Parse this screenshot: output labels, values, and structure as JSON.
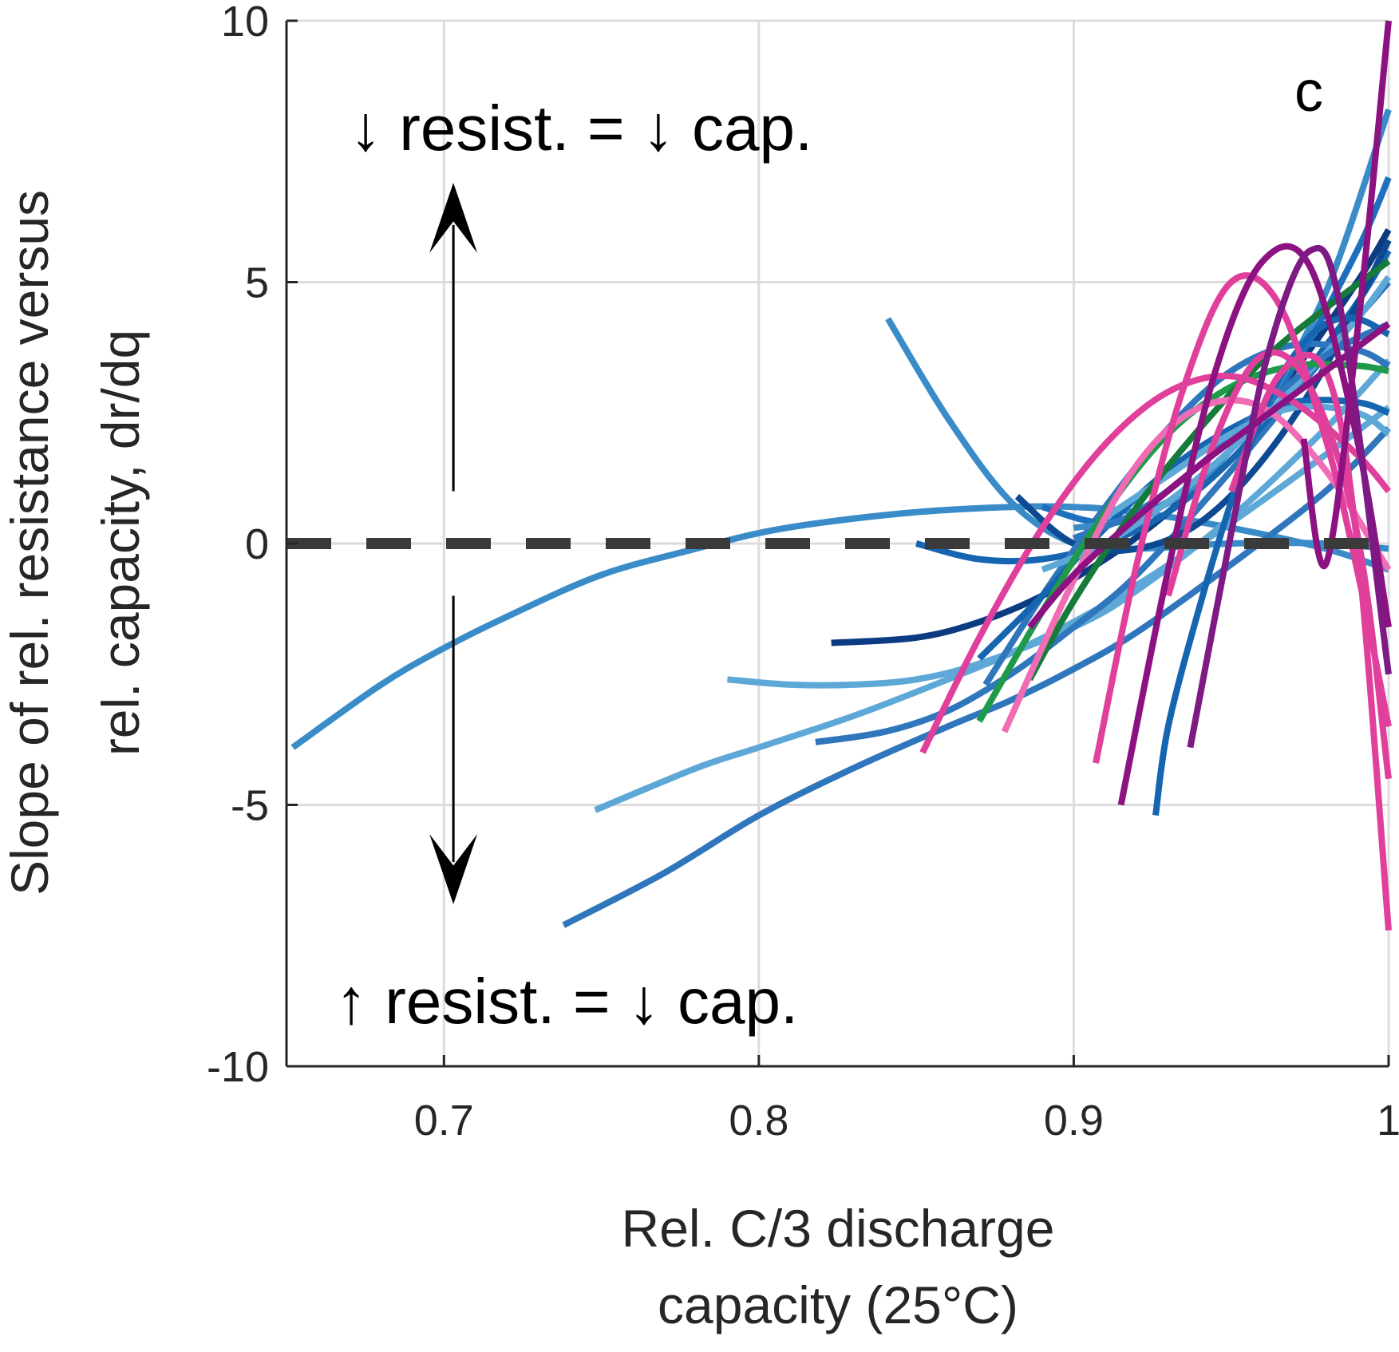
{
  "chart_data": {
    "type": "line",
    "panel_label": "c",
    "xlabel": [
      "Rel. C/3 discharge",
      "capacity (25°C)"
    ],
    "ylabel": [
      "Slope of rel. resistance versus",
      "rel. capacity, dr/dq"
    ],
    "xlim": [
      0.65,
      1.0
    ],
    "ylim": [
      -10,
      10
    ],
    "xticks": [
      0.7,
      0.8,
      0.9,
      1.0
    ],
    "xtick_labels": [
      "0.7",
      "0.8",
      "0.9",
      "1"
    ],
    "yticks": [
      -10,
      -5,
      0,
      5,
      10
    ],
    "ytick_labels": [
      "-10",
      "-5",
      "0",
      "5",
      "10"
    ],
    "grid": true,
    "annotations": {
      "upper": "↓ resist. = ↓ cap.",
      "lower": "↑ resist. = ↓ cap."
    },
    "zero_line": {
      "y": 0,
      "style": "dashed",
      "color": "#3a3a3a"
    },
    "arrows": [
      {
        "x": 0.703,
        "from": 1.0,
        "to": 6.9,
        "direction": "up"
      },
      {
        "x": 0.703,
        "from": -1.0,
        "to": -6.9,
        "direction": "down"
      }
    ],
    "series": [
      {
        "color": "#3a8cc9",
        "x": [
          0.652,
          0.68,
          0.7,
          0.72,
          0.75,
          0.78,
          0.8,
          0.82,
          0.85,
          0.88,
          0.9,
          0.92,
          0.95,
          0.98,
          1.0
        ],
        "y": [
          -3.9,
          -2.7,
          -2.0,
          -1.4,
          -0.6,
          -0.1,
          0.2,
          0.4,
          0.6,
          0.7,
          0.7,
          0.6,
          0.3,
          -0.1,
          -0.5
        ]
      },
      {
        "color": "#3a8cc9",
        "x": [
          0.841,
          0.86,
          0.88,
          0.9,
          0.92,
          0.95,
          0.98,
          1.0
        ],
        "y": [
          4.3,
          2.4,
          0.8,
          0.0,
          -0.1,
          0.0,
          0.0,
          -0.1
        ]
      },
      {
        "color": "#2f76bd",
        "x": [
          0.738,
          0.77,
          0.8,
          0.83,
          0.86,
          0.88,
          0.9,
          0.92,
          0.95,
          0.98,
          1.0
        ],
        "y": [
          -7.3,
          -6.3,
          -5.2,
          -4.3,
          -3.5,
          -3.0,
          -2.4,
          -1.7,
          -0.4,
          1.0,
          2.2
        ]
      },
      {
        "color": "#5ea8d8",
        "x": [
          0.748,
          0.78,
          0.8,
          0.83,
          0.86,
          0.88,
          0.9,
          0.92,
          0.95,
          0.98,
          1.0
        ],
        "y": [
          -5.1,
          -4.3,
          -3.9,
          -3.3,
          -2.6,
          -2.1,
          -1.5,
          -0.8,
          0.4,
          1.7,
          2.6
        ]
      },
      {
        "color": "#5ea8d8",
        "x": [
          0.79,
          0.81,
          0.83,
          0.85,
          0.87,
          0.9,
          0.92,
          0.95,
          0.98,
          1.0
        ],
        "y": [
          -2.6,
          -2.7,
          -2.7,
          -2.6,
          -2.3,
          -1.6,
          -0.9,
          0.5,
          2.2,
          3.5
        ]
      },
      {
        "color": "#2f76bd",
        "x": [
          0.818,
          0.84,
          0.86,
          0.88,
          0.9,
          0.92,
          0.95,
          0.98,
          1.0
        ],
        "y": [
          -3.8,
          -3.6,
          -3.2,
          -2.5,
          -1.6,
          -0.6,
          1.4,
          3.6,
          5.0
        ]
      },
      {
        "color": "#0d3b82",
        "x": [
          0.823,
          0.85,
          0.87,
          0.89,
          0.91,
          0.93,
          0.95,
          0.97,
          0.99,
          1.0
        ],
        "y": [
          -1.9,
          -1.8,
          -1.5,
          -1.0,
          -0.3,
          0.6,
          1.8,
          3.3,
          5.0,
          6.0
        ]
      },
      {
        "color": "#1565b0",
        "x": [
          0.85,
          0.87,
          0.89,
          0.91,
          0.93,
          0.95,
          0.97,
          0.99,
          1.0
        ],
        "y": [
          0.0,
          -0.3,
          -0.3,
          0.0,
          0.6,
          1.6,
          3.0,
          4.6,
          5.6
        ]
      },
      {
        "color": "#0d4a92",
        "x": [
          0.882,
          0.9,
          0.92,
          0.94,
          0.96,
          0.98,
          1.0
        ],
        "y": [
          0.9,
          0.0,
          -0.1,
          0.4,
          1.6,
          3.4,
          5.8
        ]
      },
      {
        "color": "#2f76bd",
        "x": [
          0.872,
          0.89,
          0.91,
          0.93,
          0.95,
          0.97,
          0.99,
          1.0
        ],
        "y": [
          -2.7,
          -1.0,
          0.7,
          2.2,
          3.3,
          3.8,
          3.7,
          3.4
        ]
      },
      {
        "color": "#1565b0",
        "x": [
          0.87,
          0.89,
          0.91,
          0.93,
          0.95,
          0.97,
          0.99,
          1.0
        ],
        "y": [
          -2.2,
          -1.0,
          0.3,
          1.4,
          2.2,
          2.7,
          2.7,
          2.5
        ]
      },
      {
        "color": "#1e6fbe",
        "x": [
          0.89,
          0.91,
          0.93,
          0.95,
          0.97,
          0.99,
          1.0
        ],
        "y": [
          0.7,
          0.4,
          0.8,
          1.8,
          3.4,
          5.6,
          7.0
        ]
      },
      {
        "color": "#3a8cc9",
        "x": [
          0.9,
          0.92,
          0.94,
          0.96,
          0.98,
          1.0
        ],
        "y": [
          0.3,
          0.5,
          1.2,
          2.6,
          4.8,
          8.3
        ]
      },
      {
        "color": "#5ea8d8",
        "x": [
          0.89,
          0.91,
          0.93,
          0.95,
          0.97,
          0.99,
          1.0
        ],
        "y": [
          -0.5,
          0.0,
          0.8,
          1.8,
          3.0,
          4.3,
          5.1
        ]
      },
      {
        "color": "#2f76bd",
        "x": [
          0.9,
          0.92,
          0.94,
          0.96,
          0.98,
          1.0
        ],
        "y": [
          0.1,
          0.6,
          1.5,
          2.6,
          3.6,
          4.2
        ]
      },
      {
        "color": "#1565b0",
        "x": [
          0.926,
          0.93,
          0.94,
          0.95,
          0.96,
          0.97,
          0.98,
          0.99,
          1.0
        ],
        "y": [
          -5.2,
          -3.5,
          -1.2,
          0.8,
          2.5,
          3.6,
          4.2,
          4.3,
          4.0
        ]
      },
      {
        "color": "#5ea8d8",
        "x": [
          0.91,
          0.93,
          0.95,
          0.97,
          0.99,
          1.0
        ],
        "y": [
          0.5,
          1.3,
          2.1,
          2.6,
          2.5,
          2.1
        ]
      },
      {
        "color": "#1e9a4a",
        "x": [
          0.87,
          0.89,
          0.91,
          0.93,
          0.95,
          0.97,
          0.99,
          1.0
        ],
        "y": [
          -3.4,
          -1.3,
          0.6,
          2.1,
          3.0,
          3.4,
          3.4,
          3.3
        ]
      },
      {
        "color": "#157a3a",
        "x": [
          0.886,
          0.9,
          0.92,
          0.94,
          0.96,
          0.98,
          1.0
        ],
        "y": [
          -2.6,
          -1.1,
          0.7,
          2.2,
          3.5,
          4.5,
          5.4
        ]
      },
      {
        "color": "#e0409b",
        "x": [
          0.852,
          0.87,
          0.89,
          0.91,
          0.93,
          0.95,
          0.97,
          0.99,
          1.0
        ],
        "y": [
          -4.0,
          -1.8,
          0.3,
          1.9,
          2.9,
          3.2,
          2.7,
          1.7,
          1.0
        ]
      },
      {
        "color": "#f06cb4",
        "x": [
          0.878,
          0.9,
          0.92,
          0.94,
          0.96,
          0.98,
          1.0
        ],
        "y": [
          -3.6,
          -0.7,
          1.5,
          2.6,
          2.6,
          1.4,
          -0.5
        ]
      },
      {
        "color": "#e0409b",
        "x": [
          0.907,
          0.92,
          0.935,
          0.95,
          0.965,
          0.98,
          0.99,
          1.0
        ],
        "y": [
          -4.2,
          -0.4,
          3.0,
          5.0,
          4.6,
          2.0,
          -0.5,
          -3.5
        ]
      },
      {
        "color": "#e0409b",
        "x": [
          0.93,
          0.945,
          0.96,
          0.975,
          0.99,
          1.0
        ],
        "y": [
          -1.0,
          2.0,
          3.6,
          3.0,
          0.2,
          -4.5
        ]
      },
      {
        "color": "#e0409b",
        "x": [
          0.95,
          0.965,
          0.98,
          0.99,
          1.0
        ],
        "y": [
          1.0,
          3.2,
          3.3,
          0.0,
          -7.4
        ]
      },
      {
        "color": "#8b1280",
        "x": [
          0.886,
          0.9,
          0.92,
          0.94,
          0.96,
          0.98,
          1.0
        ],
        "y": [
          -1.6,
          -0.6,
          0.5,
          1.5,
          2.4,
          3.3,
          4.2
        ]
      },
      {
        "color": "#8b1280",
        "x": [
          0.915,
          0.93,
          0.945,
          0.96,
          0.975,
          0.99,
          1.0
        ],
        "y": [
          -5.0,
          -0.5,
          3.3,
          5.4,
          5.3,
          2.0,
          -1.6
        ]
      },
      {
        "color": "#7e1a84",
        "x": [
          0.937,
          0.95,
          0.962,
          0.975,
          0.985,
          1.0
        ],
        "y": [
          -3.9,
          0.2,
          3.7,
          5.6,
          4.4,
          -2.5
        ]
      },
      {
        "color": "#8b1280",
        "x": [
          0.973,
          0.98,
          0.99,
          1.0
        ],
        "y": [
          2.0,
          -0.4,
          4.0,
          10.0
        ]
      }
    ]
  }
}
